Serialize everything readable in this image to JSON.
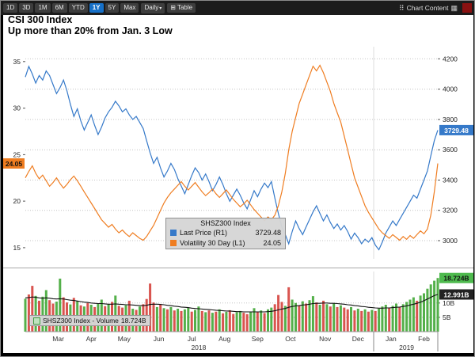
{
  "window": {
    "toolbar": {
      "periods": [
        "1D",
        "3D",
        "1M",
        "6M",
        "YTD",
        "1Y",
        "5Y",
        "Max"
      ],
      "active_period": "1Y",
      "frequency_label": "Daily",
      "table_label": "Table",
      "right_label": "Chart Content"
    },
    "title_line1": "CSI 300 Index",
    "title_line2": "Up more than 20% from Jan. 3 Low"
  },
  "icons": {
    "chevron_down": "▾",
    "table_grid": "⊞",
    "drag_handle": "⠿",
    "panel": "▦"
  },
  "legend": {
    "header": "SHSZ300 Index",
    "rows": [
      {
        "label": "Last Price  (R1)",
        "value": "3729.48",
        "color": "#3579c9"
      },
      {
        "label": "Volatility 30 Day  (L1)",
        "value": "24.05",
        "color": "#ef7d21"
      }
    ]
  },
  "volume_legend": {
    "label": "SHSZ300 Index - Volume",
    "value": "18.724B"
  },
  "badges": {
    "price": "3729.48",
    "volatility": "24.05",
    "volume": "18.724B",
    "volume_ma": "12.991B"
  },
  "colors": {
    "accent_active": "#1670c8",
    "price": "#3579c9",
    "volatility": "#ef7d21",
    "grid": "#c4c4c4",
    "axis_text": "#222222",
    "badge_price_bg": "#3579c9",
    "badge_vol_bg": "#ef7d21",
    "badge_volume_bg": "#4eba4e",
    "badge_volume_ma_bg": "#222222"
  },
  "chart_data": {
    "type": "line",
    "title": "CSI 300 Index",
    "subtitle": "Up more than 20% from Jan. 3 Low",
    "months": [
      {
        "label": "Mar",
        "center_index": 9.5
      },
      {
        "label": "Apr",
        "center_index": 19
      },
      {
        "label": "May",
        "center_index": 28.5
      },
      {
        "label": "Jun",
        "center_index": 38.5
      },
      {
        "label": "Jul",
        "center_index": 48
      },
      {
        "label": "Aug",
        "center_index": 57.5
      },
      {
        "label": "Sep",
        "center_index": 67
      },
      {
        "label": "Oct",
        "center_index": 76.5
      },
      {
        "label": "Nov",
        "center_index": 86.5
      },
      {
        "label": "Dec",
        "center_index": 96
      },
      {
        "label": "Jan",
        "center_index": 105.5
      },
      {
        "label": "Feb",
        "center_index": 115
      }
    ],
    "years": [
      {
        "label": "2018",
        "center_index": 50
      },
      {
        "label": "2019",
        "center_index": 110
      }
    ],
    "year_boundary_index": 100.5,
    "left_axis": {
      "name": "Volatility 30 Day (L1)",
      "min": 13.8,
      "max": 36.6,
      "ticks": [
        35,
        30,
        25,
        20,
        15
      ]
    },
    "right_axis": {
      "name": "Last Price (R1)",
      "min": 2880,
      "max": 4280,
      "ticks": [
        4200,
        4000,
        3800,
        3600,
        3400,
        3200,
        3000
      ]
    },
    "series": [
      {
        "name": "Last Price",
        "scale_label": "R1",
        "axis": "right",
        "color": "#3579c9",
        "last_value": 3729.48,
        "values": [
          4080,
          4150,
          4100,
          4040,
          4090,
          4060,
          4120,
          4090,
          4030,
          3970,
          4010,
          4060,
          3990,
          3900,
          3820,
          3870,
          3790,
          3730,
          3780,
          3830,
          3760,
          3700,
          3750,
          3810,
          3850,
          3880,
          3920,
          3890,
          3850,
          3870,
          3830,
          3800,
          3820,
          3780,
          3740,
          3660,
          3580,
          3510,
          3550,
          3480,
          3420,
          3460,
          3510,
          3470,
          3410,
          3360,
          3310,
          3370,
          3430,
          3480,
          3450,
          3400,
          3440,
          3390,
          3330,
          3370,
          3420,
          3370,
          3310,
          3260,
          3300,
          3340,
          3300,
          3250,
          3210,
          3270,
          3330,
          3290,
          3340,
          3380,
          3350,
          3390,
          3280,
          3180,
          3090,
          3040,
          2980,
          3060,
          3130,
          3080,
          3040,
          3090,
          3140,
          3190,
          3230,
          3180,
          3130,
          3170,
          3120,
          3080,
          3110,
          3070,
          3100,
          3060,
          3010,
          3050,
          3020,
          2980,
          3010,
          2990,
          3020,
          2970,
          2940,
          2990,
          3050,
          3090,
          3130,
          3100,
          3140,
          3180,
          3220,
          3260,
          3300,
          3280,
          3340,
          3400,
          3460,
          3560,
          3660,
          3729.48
        ]
      },
      {
        "name": "Volatility 30 Day",
        "scale_label": "L1",
        "axis": "left",
        "color": "#ef7d21",
        "last_value": 24.05,
        "values": [
          22.5,
          23.2,
          23.8,
          23.0,
          22.4,
          22.8,
          22.2,
          21.6,
          22.0,
          22.5,
          21.9,
          21.4,
          21.8,
          22.3,
          22.7,
          22.2,
          21.6,
          21.0,
          20.4,
          19.8,
          19.2,
          18.6,
          18.0,
          17.6,
          17.2,
          17.5,
          17.0,
          16.6,
          16.9,
          16.5,
          16.2,
          16.6,
          16.3,
          16.0,
          15.8,
          16.2,
          16.8,
          17.4,
          18.2,
          19.0,
          19.8,
          20.4,
          20.9,
          21.3,
          21.7,
          22.1,
          21.6,
          21.2,
          21.6,
          22.0,
          21.5,
          21.0,
          20.6,
          20.9,
          21.3,
          20.8,
          20.4,
          20.8,
          21.2,
          20.7,
          20.2,
          19.8,
          19.4,
          19.7,
          20.1,
          19.6,
          19.1,
          18.7,
          18.3,
          17.9,
          18.3,
          18.0,
          18.5,
          19.5,
          21.0,
          23.0,
          25.5,
          27.5,
          29.0,
          30.5,
          31.5,
          32.5,
          33.5,
          34.5,
          34.0,
          34.6,
          33.8,
          32.8,
          31.8,
          30.5,
          29.5,
          28.5,
          27.0,
          25.5,
          24.0,
          22.5,
          21.5,
          20.5,
          19.5,
          18.8,
          18.2,
          17.6,
          17.0,
          16.6,
          16.3,
          16.0,
          16.4,
          16.1,
          15.8,
          16.2,
          15.9,
          16.3,
          16.0,
          16.4,
          16.8,
          16.5,
          17.0,
          18.5,
          21.0,
          24.05
        ]
      }
    ],
    "volume_panel": {
      "name": "SHSZ300 Index - Volume",
      "unit": "B",
      "axis": {
        "min": 0,
        "max": 21,
        "ticks": [
          {
            "value": 5,
            "label": "5B"
          },
          {
            "value": 10,
            "label": "10B"
          }
        ]
      },
      "last_volume": 18.724,
      "last_ma": 12.991,
      "up_color": "#54b04a",
      "down_color": "#d9544f",
      "ma_color": "#111111",
      "bar_values": [
        11.5,
        13.0,
        16.0,
        12.5,
        10.8,
        12.2,
        14.5,
        11.0,
        9.8,
        10.5,
        18.5,
        12.0,
        10.2,
        9.5,
        11.8,
        10.6,
        9.2,
        8.8,
        10.0,
        9.4,
        8.6,
        9.8,
        11.2,
        8.9,
        9.6,
        10.4,
        12.6,
        9.0,
        8.4,
        9.2,
        10.8,
        8.0,
        7.6,
        8.8,
        9.6,
        11.4,
        16.8,
        10.2,
        8.6,
        9.4,
        8.2,
        7.8,
        8.6,
        7.4,
        8.0,
        7.2,
        7.8,
        8.4,
        7.0,
        7.6,
        8.8,
        7.2,
        6.8,
        7.4,
        6.6,
        7.0,
        7.8,
        6.4,
        6.9,
        7.5,
        6.2,
        6.8,
        7.2,
        6.6,
        6.1,
        7.0,
        8.2,
        6.8,
        7.4,
        6.5,
        7.8,
        8.4,
        9.6,
        12.8,
        10.4,
        9.0,
        15.5,
        11.2,
        10.0,
        9.2,
        10.6,
        9.8,
        11.0,
        12.4,
        10.2,
        9.4,
        10.8,
        9.6,
        8.8,
        9.8,
        8.6,
        9.2,
        8.4,
        7.8,
        8.6,
        7.4,
        8.0,
        7.2,
        7.8,
        7.0,
        7.6,
        7.2,
        8.0,
        8.8,
        9.4,
        8.2,
        9.0,
        9.8,
        8.6,
        9.6,
        10.4,
        11.2,
        12.0,
        10.8,
        12.6,
        13.4,
        15.0,
        16.5,
        17.8,
        18.724
      ],
      "bar_directions": "grrgrggrrggrrgrgrgrgrggrgrgrrgrgrgrrrrgrgrgrgrggrggrgrgrgrgrrggrrggrgrggrrrgrggrgrggrgrgrgrgrrgrgrgrgrgggrggrggggrgggggg",
      "ma_values": [
        11.8,
        11.9,
        12.1,
        12.0,
        11.8,
        11.7,
        11.8,
        11.7,
        11.5,
        11.4,
        11.5,
        11.4,
        11.2,
        11.0,
        10.9,
        10.7,
        10.5,
        10.3,
        10.2,
        10.0,
        9.9,
        9.8,
        9.8,
        9.7,
        9.6,
        9.6,
        9.7,
        9.6,
        9.5,
        9.4,
        9.4,
        9.3,
        9.2,
        9.1,
        9.1,
        9.2,
        9.5,
        9.6,
        9.6,
        9.5,
        9.4,
        9.2,
        9.1,
        8.9,
        8.8,
        8.6,
        8.5,
        8.4,
        8.2,
        8.1,
        8.0,
        7.9,
        7.8,
        7.7,
        7.6,
        7.5,
        7.4,
        7.3,
        7.2,
        7.2,
        7.1,
        7.0,
        7.0,
        6.9,
        6.9,
        6.9,
        6.9,
        6.9,
        6.9,
        6.9,
        7.0,
        7.1,
        7.3,
        7.6,
        7.9,
        8.1,
        8.5,
        8.8,
        9.0,
        9.1,
        9.3,
        9.4,
        9.6,
        9.8,
        9.9,
        9.9,
        10.0,
        10.0,
        9.9,
        9.9,
        9.8,
        9.7,
        9.6,
        9.4,
        9.3,
        9.1,
        9.0,
        8.8,
        8.7,
        8.5,
        8.4,
        8.3,
        8.2,
        8.2,
        8.3,
        8.3,
        8.4,
        8.5,
        8.6,
        8.8,
        9.0,
        9.3,
        9.6,
        9.9,
        10.3,
        10.8,
        11.4,
        12.0,
        12.6,
        12.991
      ]
    }
  }
}
